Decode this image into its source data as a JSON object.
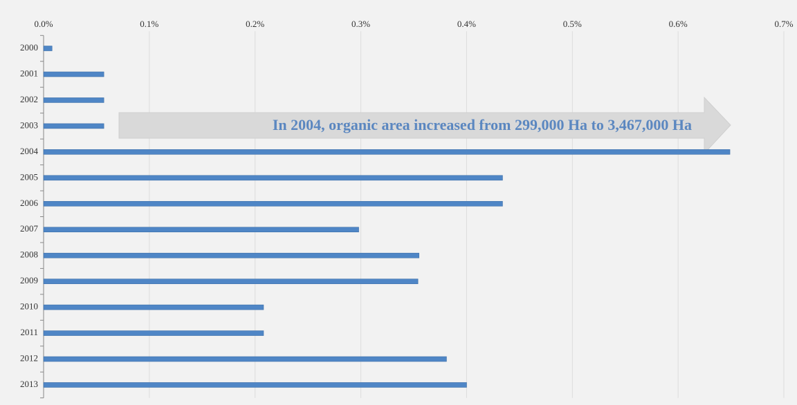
{
  "chart_data": {
    "type": "bar",
    "orientation": "horizontal",
    "annotation": "In 2004, organic area increased from 299,000 Ha to 3,467,000 Ha",
    "categories": [
      "2000",
      "2001",
      "2002",
      "2003",
      "2004",
      "2005",
      "2006",
      "2007",
      "2008",
      "2009",
      "2010",
      "2011",
      "2012",
      "2013"
    ],
    "values": [
      0.008,
      0.057,
      0.057,
      0.057,
      0.649,
      0.434,
      0.434,
      0.298,
      0.355,
      0.354,
      0.208,
      0.208,
      0.381,
      0.4
    ],
    "color": "#4f86c6",
    "xlim": [
      0,
      0.7
    ],
    "xticks": [
      {
        "value": 0,
        "label": "0.0%"
      },
      {
        "value": 0.1,
        "label": "0.1%"
      },
      {
        "value": 0.2,
        "label": "0.2%"
      },
      {
        "value": 0.3,
        "label": "0.3%"
      },
      {
        "value": 0.4,
        "label": "0.4%"
      },
      {
        "value": 0.5,
        "label": "0.5%"
      },
      {
        "value": 0.6,
        "label": "0.6%"
      },
      {
        "value": 0.7,
        "label": "0.7%"
      }
    ],
    "grid": true
  }
}
